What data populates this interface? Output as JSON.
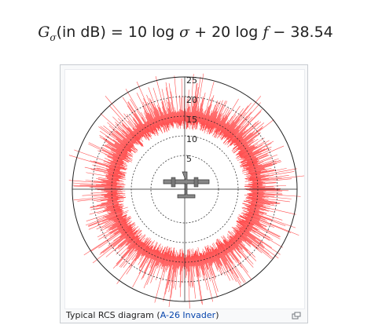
{
  "formula": [
    "G",
    "σ",
    "(in dB) = ",
    "10",
    " log ",
    "σ",
    " + ",
    "20",
    " log ",
    "f",
    " − 38.54"
  ],
  "figure": {
    "radial_labels": [
      5,
      10,
      15,
      20,
      25
    ],
    "caption": {
      "text": "Typical RCS diagram (",
      "link": "A-26 Invader",
      "end": ")"
    }
  }
}
